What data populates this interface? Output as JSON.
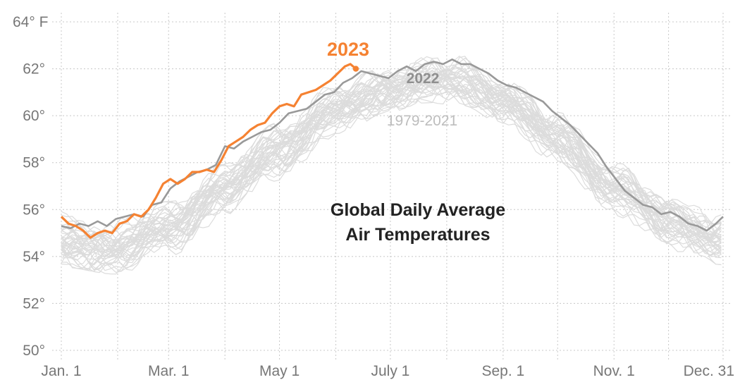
{
  "chart_data": {
    "type": "line",
    "title": [
      "Global Daily Average",
      "Air Temperatures"
    ],
    "xlabel": "",
    "ylabel": "",
    "x_unit": "day of year",
    "xlim": [
      1,
      365
    ],
    "ylim": [
      50,
      64
    ],
    "grid": true,
    "y_ticks": [
      {
        "value": 64,
        "label": "64° F"
      },
      {
        "value": 62,
        "label": "62°"
      },
      {
        "value": 60,
        "label": "60°"
      },
      {
        "value": 58,
        "label": "58°"
      },
      {
        "value": 56,
        "label": "56°"
      },
      {
        "value": 54,
        "label": "54°"
      },
      {
        "value": 52,
        "label": "52°"
      },
      {
        "value": 50,
        "label": "50°"
      }
    ],
    "x_gridlines_day": [
      1,
      32,
      60,
      91,
      121,
      152,
      182,
      213,
      244,
      274,
      305,
      335,
      365
    ],
    "x_ticks": [
      {
        "day": 1,
        "label": "Jan. 1"
      },
      {
        "day": 60,
        "label": "Mar. 1"
      },
      {
        "day": 121,
        "label": "May 1"
      },
      {
        "day": 182,
        "label": "July 1"
      },
      {
        "day": 244,
        "label": "Sep. 1"
      },
      {
        "day": 305,
        "label": "Nov. 1"
      },
      {
        "day": 365,
        "label": "Dec. 31"
      }
    ],
    "series": [
      {
        "name": "2023",
        "label": "2023",
        "color": "#f58232",
        "end_marker": true,
        "x": [
          1,
          5,
          9,
          13,
          17,
          21,
          25,
          29,
          33,
          37,
          41,
          45,
          49,
          53,
          57,
          61,
          65,
          69,
          73,
          77,
          81,
          85,
          89,
          93,
          97,
          101,
          105,
          109,
          113,
          117,
          121,
          125,
          129,
          133,
          137,
          141,
          145,
          149,
          153,
          157,
          160,
          163
        ],
        "values": [
          55.7,
          55.4,
          55.3,
          55.1,
          54.8,
          55.0,
          55.1,
          55.0,
          55.4,
          55.5,
          55.8,
          55.7,
          56.0,
          56.5,
          57.1,
          57.3,
          57.1,
          57.3,
          57.6,
          57.6,
          57.7,
          57.6,
          58.1,
          58.7,
          58.9,
          59.1,
          59.4,
          59.6,
          59.7,
          60.1,
          60.4,
          60.5,
          60.4,
          60.9,
          61.0,
          61.1,
          61.3,
          61.5,
          61.8,
          62.1,
          62.2,
          62.0
        ]
      },
      {
        "name": "2022",
        "label": "2022",
        "color": "#999999",
        "x": [
          1,
          6,
          11,
          16,
          21,
          26,
          31,
          36,
          41,
          46,
          51,
          56,
          61,
          66,
          71,
          76,
          81,
          86,
          91,
          96,
          101,
          106,
          111,
          116,
          121,
          126,
          131,
          136,
          141,
          146,
          151,
          156,
          161,
          166,
          171,
          176,
          181,
          186,
          191,
          196,
          201,
          206,
          211,
          216,
          221,
          226,
          231,
          236,
          241,
          246,
          251,
          256,
          261,
          266,
          271,
          276,
          281,
          286,
          291,
          296,
          301,
          306,
          311,
          316,
          321,
          326,
          331,
          336,
          341,
          346,
          351,
          356,
          361,
          365
        ],
        "values": [
          55.3,
          55.2,
          55.4,
          55.3,
          55.5,
          55.3,
          55.6,
          55.7,
          55.8,
          55.7,
          56.2,
          56.3,
          56.9,
          57.2,
          57.4,
          57.6,
          57.7,
          57.9,
          58.7,
          58.6,
          58.9,
          59.1,
          59.3,
          59.4,
          59.7,
          60.1,
          60.2,
          60.3,
          60.6,
          60.9,
          61.0,
          61.4,
          61.6,
          61.9,
          61.8,
          61.7,
          61.6,
          61.9,
          62.1,
          61.9,
          62.2,
          62.3,
          62.2,
          62.4,
          62.2,
          62.2,
          62.0,
          61.8,
          61.5,
          61.3,
          61.2,
          61.0,
          60.8,
          60.6,
          60.2,
          59.9,
          59.6,
          59.2,
          58.8,
          58.4,
          57.8,
          57.3,
          56.8,
          56.5,
          56.2,
          56.1,
          55.8,
          55.9,
          55.7,
          55.4,
          55.3,
          55.1,
          55.4,
          55.7
        ]
      },
      {
        "name": "1979-2021",
        "label": "1979-2021",
        "color": "#dcdcdc",
        "count": 43,
        "description": "daily climatology ensemble, one line per year",
        "x": [
          1,
          31,
          61,
          91,
          121,
          151,
          181,
          201,
          221,
          244,
          274,
          305,
          335,
          365
        ],
        "mean": [
          54.6,
          54.3,
          55.3,
          56.9,
          58.6,
          60.2,
          61.1,
          61.5,
          61.4,
          60.7,
          59.0,
          57.0,
          55.5,
          54.7
        ],
        "min": [
          53.7,
          53.4,
          54.2,
          55.7,
          57.4,
          59.2,
          60.3,
          60.7,
          60.6,
          59.8,
          58.0,
          55.9,
          54.3,
          53.8
        ],
        "max": [
          55.9,
          55.6,
          56.2,
          57.8,
          59.6,
          61.2,
          62.0,
          62.4,
          62.4,
          61.5,
          60.0,
          57.9,
          56.3,
          55.7
        ]
      }
    ]
  },
  "labels": {
    "series_2023": "2023",
    "series_2022": "2022",
    "series_hist": "1979-2021",
    "title_line1": "Global Daily Average",
    "title_line2": "Air Temperatures"
  }
}
